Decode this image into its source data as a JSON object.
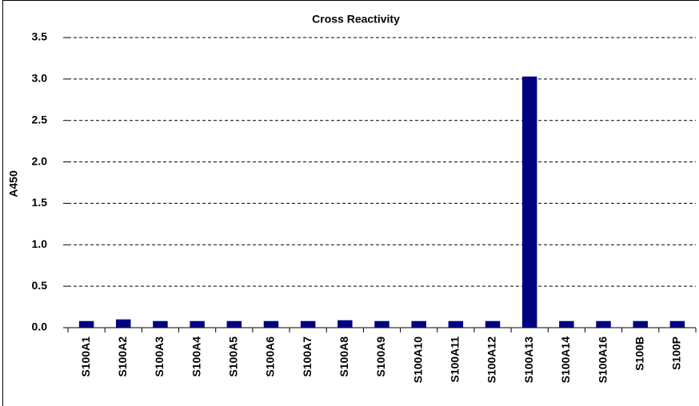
{
  "chart_data": {
    "type": "bar",
    "title": "Cross Reactivity",
    "y_label": "A450",
    "categories": [
      "S100A1",
      "S100A2",
      "S100A3",
      "S100A4",
      "S100A5",
      "S100A6",
      "S100A7",
      "S100A8",
      "S100A9",
      "S100A10",
      "S100A11",
      "S100A12",
      "S100A13",
      "S100A14",
      "S100A16",
      "S100B",
      "S100P"
    ],
    "values": [
      0.08,
      0.1,
      0.08,
      0.08,
      0.08,
      0.08,
      0.08,
      0.09,
      0.08,
      0.08,
      0.08,
      0.08,
      3.03,
      0.08,
      0.08,
      0.08,
      0.08
    ],
    "color": "#000080",
    "ylim": [
      0,
      3.5
    ],
    "yticks": [
      {
        "value": 0,
        "label": "0.0"
      },
      0.5,
      {
        "value": 1,
        "label": "1.0"
      },
      1.5,
      {
        "value": 2,
        "label": "2.0"
      },
      2.5,
      {
        "value": 3,
        "label": "3.0"
      },
      3.5
    ],
    "grid": true
  }
}
